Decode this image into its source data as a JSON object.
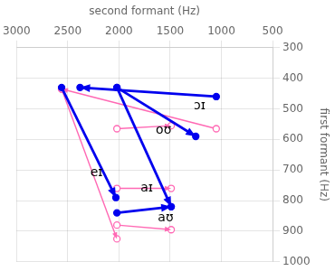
{
  "chart_data": {
    "type": "arrow",
    "x_label": "second formant (Hz)",
    "y_label": "first formant (Hz)",
    "xlim": [
      3000,
      500
    ],
    "ylim": [
      1000,
      300
    ],
    "xticks": [
      3000,
      2500,
      2000,
      1500,
      1000,
      500
    ],
    "yticks": [
      300,
      400,
      500,
      600,
      700,
      800,
      900,
      1000
    ],
    "grid": true,
    "series": [
      {
        "color": "#FF69B4",
        "marker": "open",
        "values": [
          {
            "start": [
              2560,
              435
            ],
            "end": [
              2020,
              925
            ]
          },
          {
            "start": [
              2020,
              760
            ],
            "end": [
              1490,
              760
            ]
          },
          {
            "start": [
              1050,
              565
            ],
            "end": [
              2560,
              435
            ]
          },
          {
            "start": [
              2020,
              565
            ],
            "end": [
              1490,
              555
            ]
          },
          {
            "start": [
              2020,
              880
            ],
            "end": [
              1490,
              895
            ]
          }
        ]
      },
      {
        "color": "#0000EE",
        "marker": "filled",
        "values": [
          {
            "start": [
              2560,
              430
            ],
            "end": [
              2030,
              790
            ]
          },
          {
            "start": [
              2020,
              430
            ],
            "end": [
              1490,
              820
            ]
          },
          {
            "start": [
              1050,
              460
            ],
            "end": [
              2380,
              430
            ]
          },
          {
            "start": [
              2020,
              430
            ],
            "end": [
              1250,
              590
            ]
          },
          {
            "start": [
              2020,
              840
            ],
            "end": [
              1490,
              820
            ]
          }
        ]
      }
    ],
    "annotations": [
      {
        "text": "ɔɪ",
        "x": 1270,
        "y": 492
      },
      {
        "text": "oʊ",
        "x": 1640,
        "y": 570
      },
      {
        "text": "eɪ",
        "x": 2280,
        "y": 710
      },
      {
        "text": "aɪ",
        "x": 1790,
        "y": 760
      },
      {
        "text": "aʊ",
        "x": 1620,
        "y": 858
      }
    ]
  }
}
